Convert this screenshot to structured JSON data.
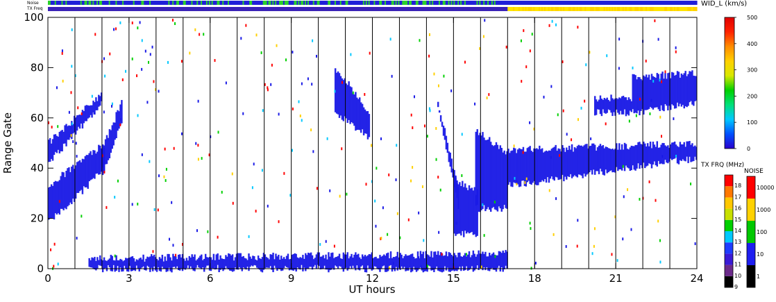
{
  "chart_data": {
    "type": "heatmap",
    "xlabel": "UT hours",
    "ylabel": "Range Gate",
    "xlim": [
      0,
      24
    ],
    "ylim": [
      0,
      100
    ],
    "x_ticks": [
      "0",
      "3",
      "6",
      "9",
      "12",
      "15",
      "18",
      "21",
      "24"
    ],
    "x_tick_values": [
      0,
      3,
      6,
      9,
      12,
      15,
      18,
      21,
      24
    ],
    "y_ticks": [
      "0",
      "20",
      "40",
      "60",
      "80",
      "100"
    ],
    "y_tick_values": [
      0,
      20,
      40,
      60,
      80,
      100
    ],
    "hour_lines": [
      1,
      2,
      3,
      4,
      5,
      6,
      7,
      8,
      9,
      10,
      11,
      12,
      13,
      14,
      15,
      16,
      17,
      18,
      19,
      20,
      21,
      22,
      23
    ],
    "top_bars": {
      "noise_label": "Noise",
      "txfreq_label": "TX Freq",
      "noise_segments": [
        {
          "start": 0,
          "end": 17,
          "pattern": "green-blue"
        },
        {
          "start": 17,
          "end": 24,
          "pattern": "blue"
        }
      ],
      "txfreq_segments": [
        {
          "start": 0,
          "end": 17,
          "pattern": "indigo"
        },
        {
          "start": 17,
          "end": 24,
          "pattern": "yellow"
        }
      ]
    },
    "regions": [
      {
        "name": "early-band-lower",
        "x": [
          0,
          2.1
        ],
        "y_start": [
          18,
          40
        ],
        "y_end": [
          33,
          50
        ],
        "color": "#1a1ae6"
      },
      {
        "name": "early-band-upper",
        "x": [
          0,
          2.0
        ],
        "y_start": [
          42,
          66
        ],
        "y_end": [
          50,
          70
        ],
        "color": "#1a1ae6"
      },
      {
        "name": "rising-band",
        "x": [
          2.0,
          2.7
        ],
        "y_start": [
          38,
          58
        ],
        "y_end": [
          48,
          66
        ],
        "color": "#1a1ae6"
      },
      {
        "name": "evening-block",
        "x": [
          17.0,
          24.0
        ],
        "y_start": [
          33,
          44
        ],
        "y_end": [
          47,
          50
        ],
        "color": "#1a1ae6"
      },
      {
        "name": "block-16",
        "x": [
          15.8,
          17.0
        ],
        "y_start": [
          24,
          24
        ],
        "y_end": [
          55,
          46
        ],
        "color": "#1a1ae6"
      },
      {
        "name": "patch-15",
        "x": [
          15.0,
          15.9
        ],
        "y_start": [
          14,
          14
        ],
        "y_end": [
          36,
          30
        ],
        "color": "#1a1ae6"
      },
      {
        "name": "high-cloud-11",
        "x": [
          10.6,
          11.9
        ],
        "y_start": [
          62,
          52
        ],
        "y_end": [
          80,
          62
        ],
        "color": "#1a1ae6"
      },
      {
        "name": "high-cloud-20",
        "x": [
          20.2,
          21.6
        ],
        "y_start": [
          62,
          62
        ],
        "y_end": [
          68,
          68
        ],
        "color": "#1a1ae6"
      },
      {
        "name": "high-cloud-22",
        "x": [
          21.6,
          24.0
        ],
        "y_start": [
          62,
          66
        ],
        "y_end": [
          76,
          78
        ],
        "color": "#1a1ae6"
      },
      {
        "name": "descending-15",
        "x": [
          14.4,
          15.2
        ],
        "y_start": [
          64,
          22
        ],
        "y_end": [
          66,
          30
        ],
        "color": "#1a1ae6"
      },
      {
        "name": "ground-band",
        "x": [
          1.5,
          17.0
        ],
        "y_start": [
          0,
          0
        ],
        "y_end": [
          4,
          6
        ],
        "color": "#1a1ae6"
      }
    ],
    "colorbar_width": {
      "label": "WID_L (km/s)",
      "min": 0,
      "max": 500,
      "ticks": [
        "0",
        "100",
        "200",
        "300",
        "400",
        "500"
      ],
      "tick_values": [
        0,
        100,
        200,
        300,
        400,
        500
      ],
      "stops": [
        "#2a00cc",
        "#0050ff",
        "#00c8ff",
        "#00e07a",
        "#00d000",
        "#d8e800",
        "#ffd000",
        "#ff8c00",
        "#ff2200",
        "#e00000"
      ]
    },
    "colorbar_txfreq": {
      "label": "TX FRQ (MHz)",
      "ticks": [
        "9",
        "10",
        "11",
        "12",
        "13",
        "14",
        "15",
        "16",
        "17",
        "18"
      ],
      "colors": [
        "#000000",
        "#6b2a8a",
        "#3a1ad6",
        "#1e3cff",
        "#00c8ff",
        "#00d000",
        "#c8e000",
        "#ffc800",
        "#ff7800",
        "#ff0000"
      ]
    },
    "colorbar_noise": {
      "label": "NOISE",
      "ticks": [
        "1",
        "10",
        "100",
        "1000",
        "10000"
      ],
      "colors": [
        "#000000",
        "#1e1ef0",
        "#00c800",
        "#ffd200",
        "#ff0000"
      ]
    }
  }
}
